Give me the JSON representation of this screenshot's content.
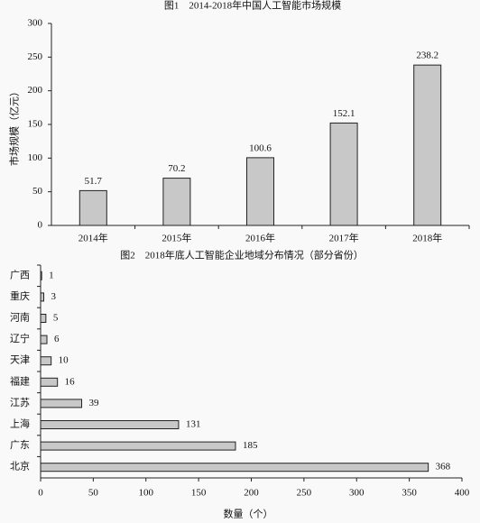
{
  "chart_data": [
    {
      "type": "bar",
      "title": "图1　2014-2018年中国人工智能市场规模",
      "y_label": "市场规模（亿元）",
      "categories": [
        "2014年",
        "2015年",
        "2016年",
        "2017年",
        "2018年"
      ],
      "values": [
        51.7,
        70.2,
        100.6,
        152.1,
        238.2
      ],
      "color": "#c8c8c8",
      "ylim": [
        0,
        300
      ],
      "yticks": [
        0,
        50,
        100,
        150,
        200,
        250,
        300
      ],
      "grid": false
    },
    {
      "type": "hbar",
      "title": "图2　2018年底人工智能企业地域分布情况（部分省份）",
      "x_label": "数量（个）",
      "categories": [
        "广西",
        "重庆",
        "河南",
        "辽宁",
        "天津",
        "福建",
        "江苏",
        "上海",
        "广东",
        "北京"
      ],
      "values": [
        1,
        3,
        5,
        6,
        10,
        16,
        39,
        131,
        185,
        368
      ],
      "color": "#c8c8c8",
      "xlim": [
        0,
        400
      ],
      "xticks": [
        0,
        50,
        100,
        150,
        200,
        250,
        300,
        350,
        400
      ],
      "grid": false
    }
  ]
}
